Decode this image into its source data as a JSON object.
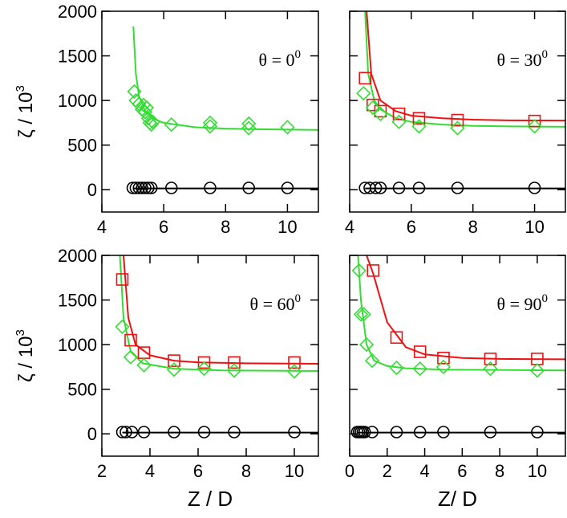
{
  "chart_data": [
    {
      "type": "scatter",
      "annotation": {
        "text": "θ = 0",
        "sup": "0"
      },
      "ylabel": {
        "text": "ζ / 10",
        "sup": "3"
      },
      "xlim": [
        4,
        11
      ],
      "ylim": [
        -250,
        2000
      ],
      "xticks": [
        4,
        6,
        8,
        10
      ],
      "yticks": [
        0,
        500,
        1000,
        1500,
        2000
      ],
      "ytick_labels": true,
      "series": [
        {
          "marker": "line",
          "color": "#000000",
          "x": [
            5.0,
            11
          ],
          "values": [
            15,
            15
          ]
        },
        {
          "marker": "line",
          "color": "#33dd33",
          "x": [
            5.02,
            5.1,
            5.2,
            5.4,
            5.7,
            6,
            7,
            8,
            9,
            11
          ],
          "values": [
            1830,
            1300,
            1050,
            880,
            790,
            750,
            700,
            685,
            678,
            670
          ]
        },
        {
          "marker": "circle",
          "color": "#000000",
          "x": [
            5.0,
            5.1,
            5.2,
            5.3,
            5.4,
            5.5,
            5.6,
            6.25,
            7.5,
            8.75,
            10
          ],
          "values": [
            20,
            20,
            20,
            20,
            20,
            20,
            20,
            20,
            20,
            20,
            20
          ]
        },
        {
          "marker": "diamond",
          "color": "#33dd33",
          "x": [
            5.05,
            5.1,
            5.2,
            5.3,
            5.35,
            5.4,
            5.45,
            5.5,
            5.55,
            5.6,
            5.65,
            6.25,
            7.5,
            7.5,
            8.75,
            8.75,
            10
          ],
          "values": [
            1100,
            1000,
            960,
            900,
            950,
            870,
            920,
            800,
            750,
            730,
            760,
            730,
            750,
            710,
            740,
            690,
            700
          ]
        }
      ]
    },
    {
      "type": "scatter",
      "annotation": {
        "text": "θ = 30",
        "sup": "0"
      },
      "xlim": [
        4,
        11
      ],
      "ylim": [
        -250,
        2000
      ],
      "xticks": [
        4,
        6,
        8,
        10
      ],
      "yticks": [
        0,
        500,
        1000,
        1500,
        2000
      ],
      "ytick_labels": false,
      "series": [
        {
          "marker": "line",
          "color": "#000000",
          "x": [
            4.5,
            11
          ],
          "values": [
            15,
            15
          ]
        },
        {
          "marker": "line",
          "color": "#ee1111",
          "x": [
            4.55,
            4.7,
            5,
            5.5,
            6,
            7,
            8,
            9,
            11
          ],
          "values": [
            2000,
            1300,
            1000,
            880,
            830,
            800,
            785,
            778,
            775
          ]
        },
        {
          "marker": "line",
          "color": "#33dd33",
          "x": [
            4.5,
            4.6,
            4.8,
            5,
            5.5,
            6,
            7,
            8,
            9,
            11
          ],
          "values": [
            2000,
            1300,
            1000,
            900,
            800,
            760,
            730,
            715,
            710,
            705
          ]
        },
        {
          "marker": "circle",
          "color": "#000000",
          "x": [
            4.5,
            4.65,
            4.85,
            5.0,
            5.6,
            6.25,
            7.5,
            10
          ],
          "values": [
            20,
            20,
            20,
            20,
            20,
            20,
            20,
            20
          ]
        },
        {
          "marker": "square",
          "color": "#ee1111",
          "x": [
            4.5,
            4.75,
            5.0,
            5.6,
            6.25,
            7.5,
            10
          ],
          "values": [
            1250,
            950,
            880,
            850,
            800,
            780,
            770
          ]
        },
        {
          "marker": "diamond",
          "color": "#33dd33",
          "x": [
            4.45,
            4.75,
            5.0,
            5.6,
            6.25,
            7.5,
            10
          ],
          "values": [
            1080,
            920,
            850,
            760,
            710,
            690,
            710
          ]
        }
      ]
    },
    {
      "type": "scatter",
      "annotation": {
        "text": "θ = 60",
        "sup": "0"
      },
      "ylabel": {
        "text": "ζ / 10",
        "sup": "3"
      },
      "xlabel": "Z / D",
      "xlim": [
        2,
        11
      ],
      "ylim": [
        -250,
        2000
      ],
      "xticks": [
        2,
        4,
        6,
        8,
        10
      ],
      "yticks": [
        0,
        500,
        1000,
        1500,
        2000
      ],
      "ytick_labels": true,
      "series": [
        {
          "marker": "line",
          "color": "#000000",
          "x": [
            2.85,
            11
          ],
          "values": [
            15,
            15
          ]
        },
        {
          "marker": "line",
          "color": "#ee1111",
          "x": [
            2.9,
            3.1,
            3.4,
            4,
            5,
            6,
            8,
            11
          ],
          "values": [
            2000,
            1300,
            1000,
            880,
            820,
            800,
            790,
            785
          ]
        },
        {
          "marker": "line",
          "color": "#33dd33",
          "x": [
            2.75,
            2.9,
            3.2,
            3.7,
            5,
            7,
            11
          ],
          "values": [
            2000,
            1300,
            920,
            790,
            730,
            710,
            705
          ]
        },
        {
          "marker": "circle",
          "color": "#000000",
          "x": [
            2.85,
            3.0,
            3.25,
            3.75,
            5,
            6.25,
            7.5,
            10
          ],
          "values": [
            20,
            20,
            20,
            20,
            20,
            20,
            20,
            20
          ]
        },
        {
          "marker": "square",
          "color": "#ee1111",
          "x": [
            2.85,
            3.2,
            3.75,
            5,
            6.25,
            7.5,
            10
          ],
          "values": [
            1730,
            1050,
            910,
            820,
            800,
            800,
            800
          ]
        },
        {
          "marker": "diamond",
          "color": "#33dd33",
          "x": [
            2.85,
            3.2,
            3.75,
            5,
            6.25,
            7.5,
            10
          ],
          "values": [
            1200,
            860,
            770,
            720,
            730,
            710,
            700
          ]
        }
      ]
    },
    {
      "type": "scatter",
      "annotation": {
        "text": "θ = 90",
        "sup": "0"
      },
      "xlabel": "Z/ D",
      "xlim": [
        0,
        11.5
      ],
      "ylim": [
        -250,
        2000
      ],
      "xticks": [
        0,
        2,
        4,
        6,
        8,
        10
      ],
      "yticks": [
        0,
        500,
        1000,
        1500,
        2000
      ],
      "ytick_labels": false,
      "series": [
        {
          "marker": "line",
          "color": "#000000",
          "x": [
            0.4,
            11.5
          ],
          "values": [
            15,
            15
          ]
        },
        {
          "marker": "line",
          "color": "#ee1111",
          "x": [
            0.9,
            1.25,
            2,
            3,
            4,
            6,
            8,
            11.5
          ],
          "values": [
            2000,
            1800,
            1250,
            970,
            890,
            850,
            840,
            835
          ]
        },
        {
          "marker": "line",
          "color": "#33dd33",
          "x": [
            0.45,
            0.6,
            0.9,
            1.3,
            2,
            3,
            5,
            11.5
          ],
          "values": [
            2000,
            1500,
            1000,
            820,
            760,
            735,
            720,
            710
          ]
        },
        {
          "marker": "circle",
          "color": "#000000",
          "x": [
            0.4,
            0.5,
            0.6,
            0.7,
            0.8,
            1.2,
            2.5,
            3.75,
            5,
            7.5,
            10
          ],
          "values": [
            20,
            20,
            20,
            20,
            20,
            20,
            20,
            20,
            20,
            20,
            20
          ]
        },
        {
          "marker": "square",
          "color": "#ee1111",
          "x": [
            1.25,
            2.5,
            3.75,
            5,
            7.5,
            10
          ],
          "values": [
            1830,
            1080,
            920,
            850,
            840,
            840
          ]
        },
        {
          "marker": "diamond",
          "color": "#33dd33",
          "x": [
            0.5,
            0.6,
            0.75,
            0.9,
            1.2,
            2.5,
            3.75,
            5,
            7.5,
            10
          ],
          "values": [
            1830,
            1340,
            1340,
            1000,
            820,
            740,
            730,
            750,
            730,
            710
          ]
        }
      ]
    }
  ]
}
